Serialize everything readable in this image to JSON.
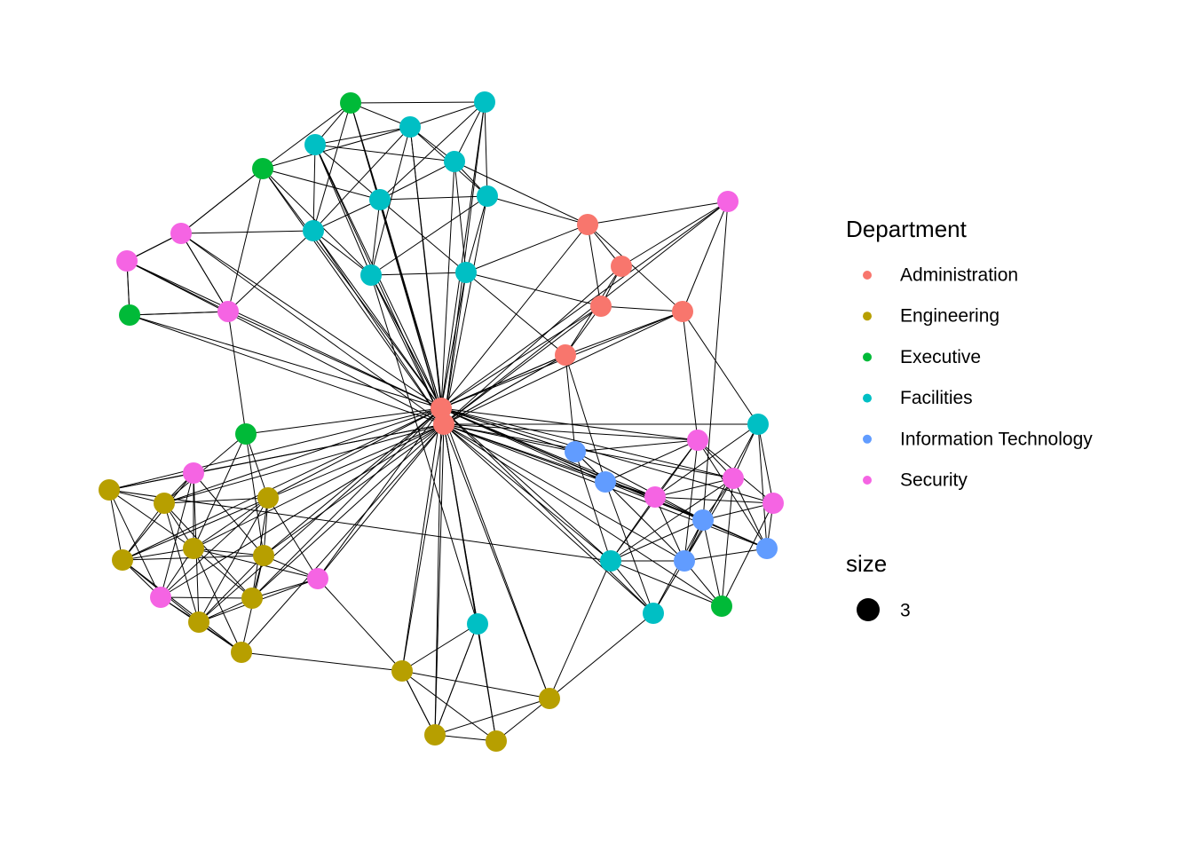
{
  "legend": {
    "title": "Department",
    "items": [
      {
        "name": "Administration",
        "color": "#F8766D"
      },
      {
        "name": "Engineering",
        "color": "#B79F00"
      },
      {
        "name": "Executive",
        "color": "#00BA38"
      },
      {
        "name": "Facilities",
        "color": "#00BFC4"
      },
      {
        "name": "Information Technology",
        "color": "#619CFF"
      },
      {
        "name": "Security",
        "color": "#F564E3"
      }
    ]
  },
  "size_legend": {
    "title": "size",
    "label": 3
  }
}
